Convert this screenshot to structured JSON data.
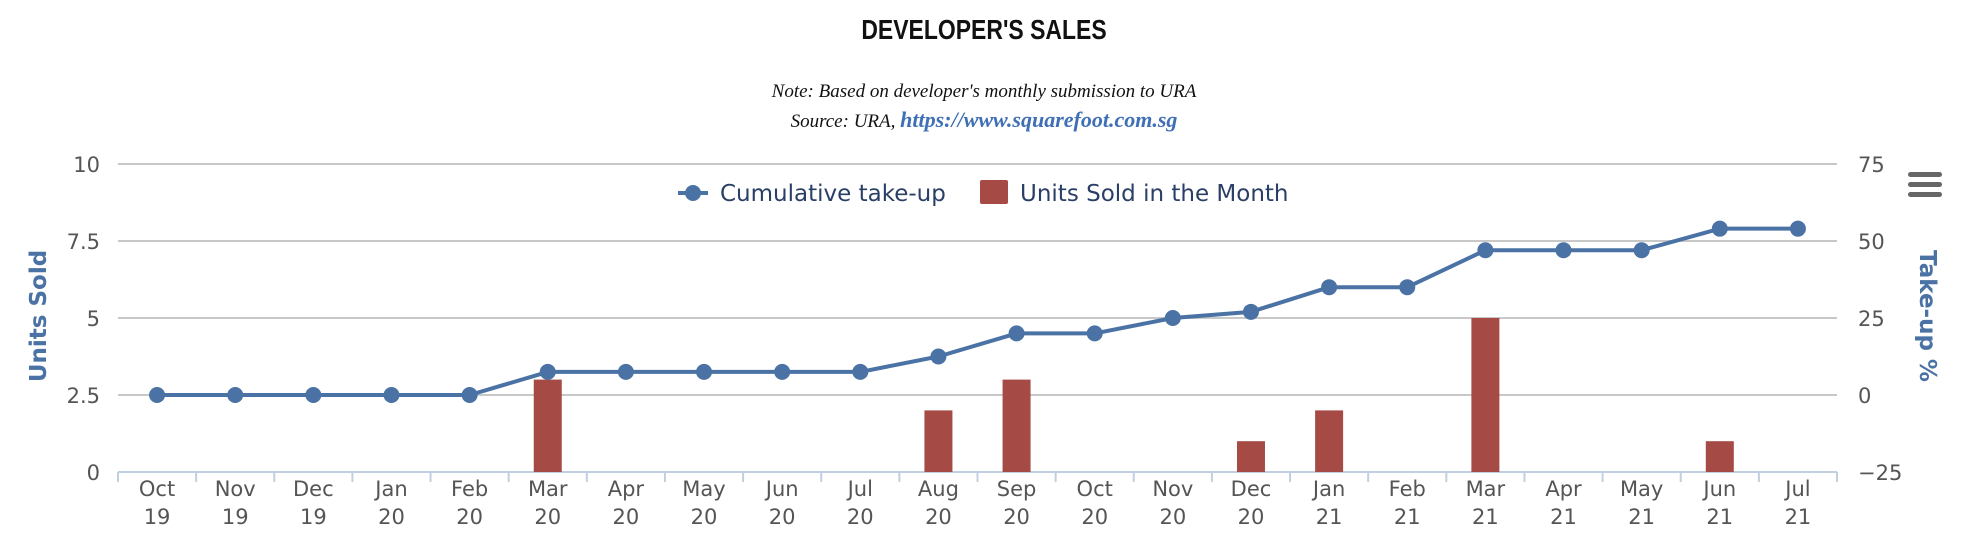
{
  "title": "DEVELOPER'S SALES",
  "note": "Note: Based on developer's monthly submission to URA",
  "source_prefix": "Source: URA, ",
  "source_link": "https://www.squarefoot.com.sg",
  "menu_icon": "hamburger-menu-icon",
  "chart_data": {
    "type": "bar",
    "categories": [
      "Oct 19",
      "Nov 19",
      "Dec 19",
      "Jan 20",
      "Feb 20",
      "Mar 20",
      "Apr 20",
      "May 20",
      "Jun 20",
      "Jul 20",
      "Aug 20",
      "Sep 20",
      "Oct 20",
      "Nov 20",
      "Dec 20",
      "Jan 21",
      "Feb 21",
      "Mar 21",
      "Apr 21",
      "May 21",
      "Jun 21",
      "Jul 21"
    ],
    "series": [
      {
        "name": "Units Sold in the Month",
        "type": "bar",
        "axis": "left",
        "color": "#a54a45",
        "values": [
          0,
          0,
          0,
          0,
          0,
          3,
          0,
          0,
          0,
          0,
          2,
          3,
          0,
          0,
          1,
          2,
          0,
          5,
          0,
          0,
          1,
          0
        ]
      },
      {
        "name": "Cumulative take-up",
        "type": "line",
        "axis": "right",
        "color": "#4a72a4",
        "values": [
          0,
          0,
          0,
          0,
          0,
          7.5,
          7.5,
          7.5,
          7.5,
          7.5,
          12.5,
          20,
          20,
          25,
          27,
          35,
          35,
          47,
          47,
          47,
          54,
          54
        ]
      }
    ],
    "y_left": {
      "label": "Units Sold",
      "ticks": [
        "0",
        "2.5",
        "5",
        "7.5",
        "10"
      ],
      "range": [
        0,
        10
      ]
    },
    "y_right": {
      "label": "Take-up %",
      "ticks": [
        "−25",
        "0",
        "25",
        "50",
        "75"
      ],
      "range": [
        -25,
        75
      ]
    },
    "grid": true,
    "legend": "top-center"
  }
}
